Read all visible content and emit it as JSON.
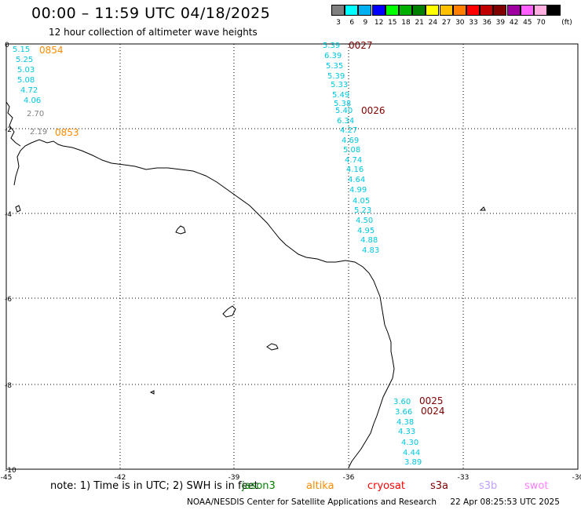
{
  "header": {
    "title": "00:00 – 11:59 UTC 04/18/2025",
    "subtitle": "12 hour collection of altimeter wave heights"
  },
  "legend": {
    "unit": "(ft)",
    "swatches": [
      {
        "label": "3",
        "color": "#808080"
      },
      {
        "label": "6",
        "color": "#00ffff"
      },
      {
        "label": "9",
        "color": "#00b0f0"
      },
      {
        "label": "12",
        "color": "#0000ff"
      },
      {
        "label": "15",
        "color": "#00ff00"
      },
      {
        "label": "18",
        "color": "#00b000"
      },
      {
        "label": "21",
        "color": "#008000"
      },
      {
        "label": "24",
        "color": "#ffff00"
      },
      {
        "label": "27",
        "color": "#ffc000"
      },
      {
        "label": "30",
        "color": "#ff8000"
      },
      {
        "label": "33",
        "color": "#ff0000"
      },
      {
        "label": "36",
        "color": "#c00000"
      },
      {
        "label": "39",
        "color": "#800000"
      },
      {
        "label": "42",
        "color": "#a000a0"
      },
      {
        "label": "45",
        "color": "#ff60ff"
      },
      {
        "label": "70",
        "color": "#ffb0e0"
      },
      {
        "label": "",
        "color": "#000000"
      }
    ]
  },
  "axes": {
    "x_ticks": [
      "-45",
      "-42",
      "-39",
      "-36",
      "-33",
      "-30"
    ],
    "y_ticks": [
      "0",
      "-2",
      "-4",
      "-6",
      "-8",
      "-10"
    ]
  },
  "observations": [
    {
      "text": "5.15",
      "color": "#00c8e0"
    },
    {
      "text": "5.25",
      "color": "#00c8e0"
    },
    {
      "text": "5.03",
      "color": "#00c8e0"
    },
    {
      "text": "5.08",
      "color": "#00c8e0"
    },
    {
      "text": "4.72",
      "color": "#00c8e0"
    },
    {
      "text": "4.06",
      "color": "#00c8e0"
    },
    {
      "text": "2.70",
      "color": "#808080"
    },
    {
      "text": "2.19",
      "color": "#808080"
    },
    {
      "text": "5.39",
      "color": "#00c8e0"
    },
    {
      "text": "6.39",
      "color": "#00c8e0"
    },
    {
      "text": "5.35",
      "color": "#00c8e0"
    },
    {
      "text": "5.39",
      "color": "#00c8e0"
    },
    {
      "text": "5.33",
      "color": "#00c8e0"
    },
    {
      "text": "5.49",
      "color": "#00c8e0"
    },
    {
      "text": "5.38",
      "color": "#00c8e0"
    },
    {
      "text": "5.40",
      "color": "#00c8e0"
    },
    {
      "text": "6.34",
      "color": "#00c8e0"
    },
    {
      "text": "4.27",
      "color": "#00c8e0"
    },
    {
      "text": "4.69",
      "color": "#00c8e0"
    },
    {
      "text": "5.08",
      "color": "#00c8e0"
    },
    {
      "text": "4.74",
      "color": "#00c8e0"
    },
    {
      "text": "4.16",
      "color": "#00c8e0"
    },
    {
      "text": "4.64",
      "color": "#00c8e0"
    },
    {
      "text": "4.99",
      "color": "#00c8e0"
    },
    {
      "text": "4.05",
      "color": "#00c8e0"
    },
    {
      "text": "5.23",
      "color": "#00c8e0"
    },
    {
      "text": "4.50",
      "color": "#00c8e0"
    },
    {
      "text": "4.95",
      "color": "#00c8e0"
    },
    {
      "text": "4.88",
      "color": "#00c8e0"
    },
    {
      "text": "4.83",
      "color": "#00c8e0"
    },
    {
      "text": "3.60",
      "color": "#00c8e0"
    },
    {
      "text": "3.66",
      "color": "#00c8e0"
    },
    {
      "text": "4.38",
      "color": "#00c8e0"
    },
    {
      "text": "4.33",
      "color": "#00c8e0"
    },
    {
      "text": "4.30",
      "color": "#00c8e0"
    },
    {
      "text": "4.44",
      "color": "#00c8e0"
    },
    {
      "text": "3.89",
      "color": "#00c8e0"
    }
  ],
  "pass_times": [
    {
      "text": "0854",
      "color": "#ff8c00"
    },
    {
      "text": "0853",
      "color": "#ff8c00"
    },
    {
      "text": "0027",
      "color": "#800000"
    },
    {
      "text": "0026",
      "color": "#800000"
    },
    {
      "text": "0025",
      "color": "#800000"
    },
    {
      "text": "0024",
      "color": "#800000"
    }
  ],
  "footer": {
    "note": "note: 1) Time is in UTC; 2) SWH is in feet",
    "satellites": [
      {
        "name": "jason3",
        "color": "#008000"
      },
      {
        "name": "altika",
        "color": "#ff8c00"
      },
      {
        "name": "cryosat",
        "color": "#ff0000"
      },
      {
        "name": "s3a",
        "color": "#800000"
      },
      {
        "name": "s3b",
        "color": "#c0a0ff"
      },
      {
        "name": "swot",
        "color": "#ff80ff"
      }
    ],
    "credit": "NOAA/NESDIS Center for Satellite Applications and Research",
    "generated": "22 Apr 08:25:53 UTC 2025"
  }
}
